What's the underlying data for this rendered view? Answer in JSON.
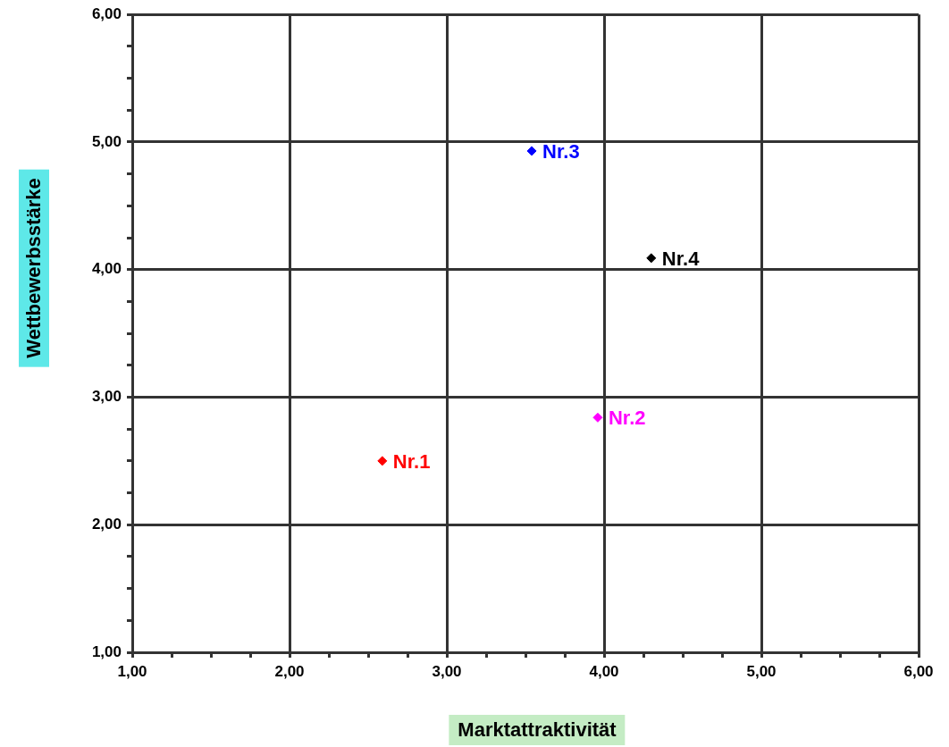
{
  "chart_data": {
    "type": "scatter",
    "xlabel": "Marktattraktivität",
    "ylabel": "Wettbewerbsstärke",
    "xlim": [
      1,
      6
    ],
    "ylim": [
      1,
      6
    ],
    "xticks": [
      {
        "value": 1,
        "label": "1,00"
      },
      {
        "value": 1.25,
        "label": null
      },
      {
        "value": 1.5,
        "label": null
      },
      {
        "value": 1.75,
        "label": null
      },
      {
        "value": 2,
        "label": "2,00"
      },
      {
        "value": 2.25,
        "label": null
      },
      {
        "value": 2.5,
        "label": null
      },
      {
        "value": 2.75,
        "label": null
      },
      {
        "value": 3,
        "label": "3,00"
      },
      {
        "value": 3.25,
        "label": null
      },
      {
        "value": 3.5,
        "label": null
      },
      {
        "value": 3.75,
        "label": null
      },
      {
        "value": 4,
        "label": "4,00"
      },
      {
        "value": 4.25,
        "label": null
      },
      {
        "value": 4.5,
        "label": null
      },
      {
        "value": 4.75,
        "label": null
      },
      {
        "value": 5,
        "label": "5,00"
      },
      {
        "value": 5.25,
        "label": null
      },
      {
        "value": 5.5,
        "label": null
      },
      {
        "value": 5.75,
        "label": null
      },
      {
        "value": 6,
        "label": "6,00"
      }
    ],
    "yticks": [
      {
        "value": 1,
        "label": "1,00"
      },
      {
        "value": 1.25,
        "label": null
      },
      {
        "value": 1.5,
        "label": null
      },
      {
        "value": 1.75,
        "label": null
      },
      {
        "value": 2,
        "label": "2,00"
      },
      {
        "value": 2.25,
        "label": null
      },
      {
        "value": 2.5,
        "label": null
      },
      {
        "value": 2.75,
        "label": null
      },
      {
        "value": 3,
        "label": "3,00"
      },
      {
        "value": 3.25,
        "label": null
      },
      {
        "value": 3.5,
        "label": null
      },
      {
        "value": 3.75,
        "label": null
      },
      {
        "value": 4,
        "label": "4,00"
      },
      {
        "value": 4.25,
        "label": null
      },
      {
        "value": 4.5,
        "label": null
      },
      {
        "value": 4.75,
        "label": null
      },
      {
        "value": 5,
        "label": "5,00"
      },
      {
        "value": 5.25,
        "label": null
      },
      {
        "value": 5.5,
        "label": null
      },
      {
        "value": 5.75,
        "label": null
      },
      {
        "value": 6,
        "label": "6,00"
      }
    ],
    "grid": true,
    "legend": false,
    "marker": "diamond",
    "series": [
      {
        "name": "Nr.1",
        "color": "#ff0000",
        "x": [
          2.59
        ],
        "values": [
          2.5
        ]
      },
      {
        "name": "Nr.2",
        "color": "#ff00ff",
        "x": [
          3.96
        ],
        "values": [
          2.84
        ]
      },
      {
        "name": "Nr.3",
        "color": "#0000ff",
        "x": [
          3.54
        ],
        "values": [
          4.93
        ]
      },
      {
        "name": "Nr.4",
        "color": "#000000",
        "x": [
          4.3
        ],
        "values": [
          4.09
        ]
      }
    ]
  }
}
